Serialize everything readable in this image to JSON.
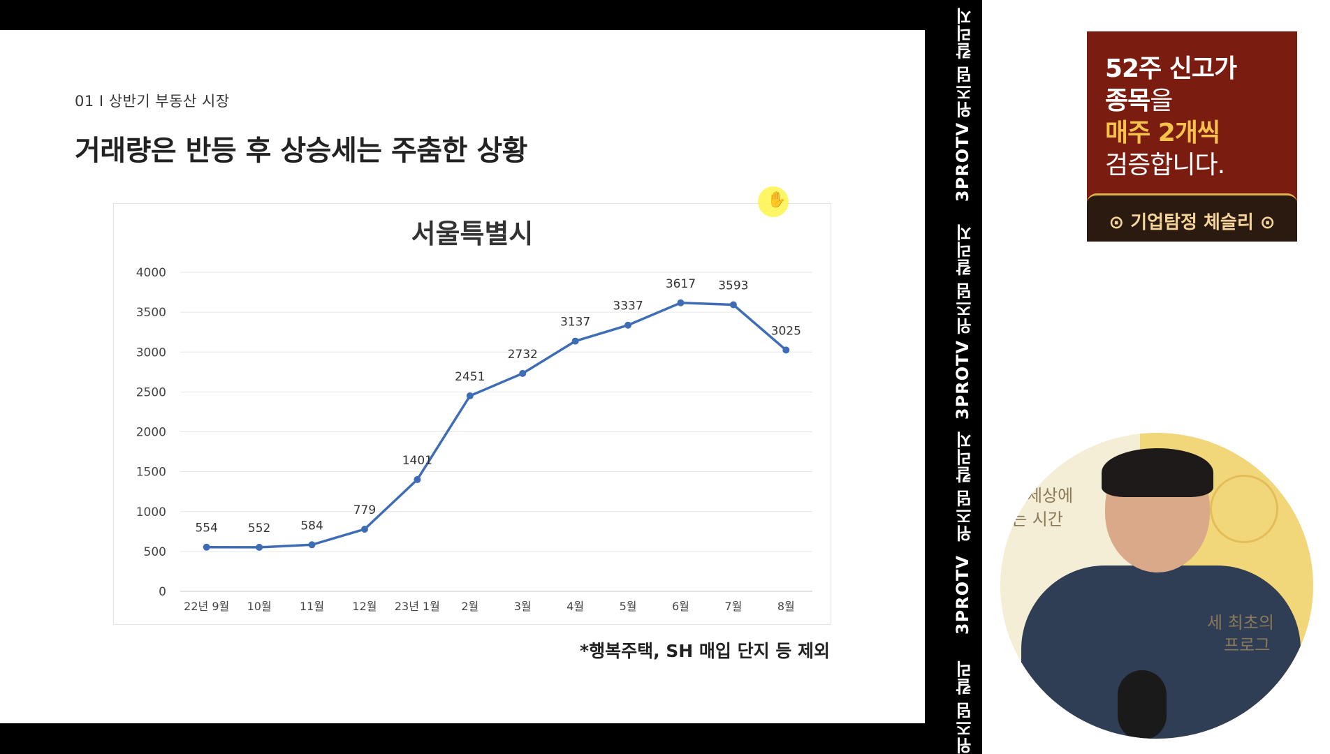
{
  "slide": {
    "section_label": "01 I 상반기 부동산 시장",
    "title": "거래량은 반등 후 상승세는 주춤한 상황",
    "footnote": "*행복주택, SH 매입 단지 등 제외"
  },
  "chart_data": {
    "type": "line",
    "title": "서울특별시",
    "categories": [
      "22년 9월",
      "10월",
      "11월",
      "12월",
      "23년 1월",
      "2월",
      "3월",
      "4월",
      "5월",
      "6월",
      "7월",
      "8월"
    ],
    "series": [
      {
        "values": [
          554,
          552,
          584,
          779,
          1401,
          2451,
          2732,
          3137,
          3337,
          3617,
          3593,
          3025
        ]
      }
    ],
    "ylim": [
      0,
      4000
    ],
    "yticks": [
      0,
      500,
      1000,
      1500,
      2000,
      2500,
      3000,
      3500,
      4000
    ],
    "grid": true,
    "line_color": "#3e6db5",
    "data_labels": true
  },
  "channel_strip": [
    "위즈덤 칼리지",
    "3PROTV",
    "위즈덤 칼리지",
    "3PROTV",
    "위즈덤 칼리지",
    "3PROTV",
    "위즈덤 칼리지"
  ],
  "ad": {
    "line1": "52주 신고가",
    "line2_a": "종목",
    "line2_b": "을",
    "line3": "매주 2개씩",
    "line4": "검증합니다.",
    "button": "⊙ 기업탐정 체슬리 ⊙"
  },
  "webcam": {
    "text_a": "세상에",
    "text_b": "는 시간",
    "text_c": "세 최초의",
    "text_d": "프로그"
  }
}
